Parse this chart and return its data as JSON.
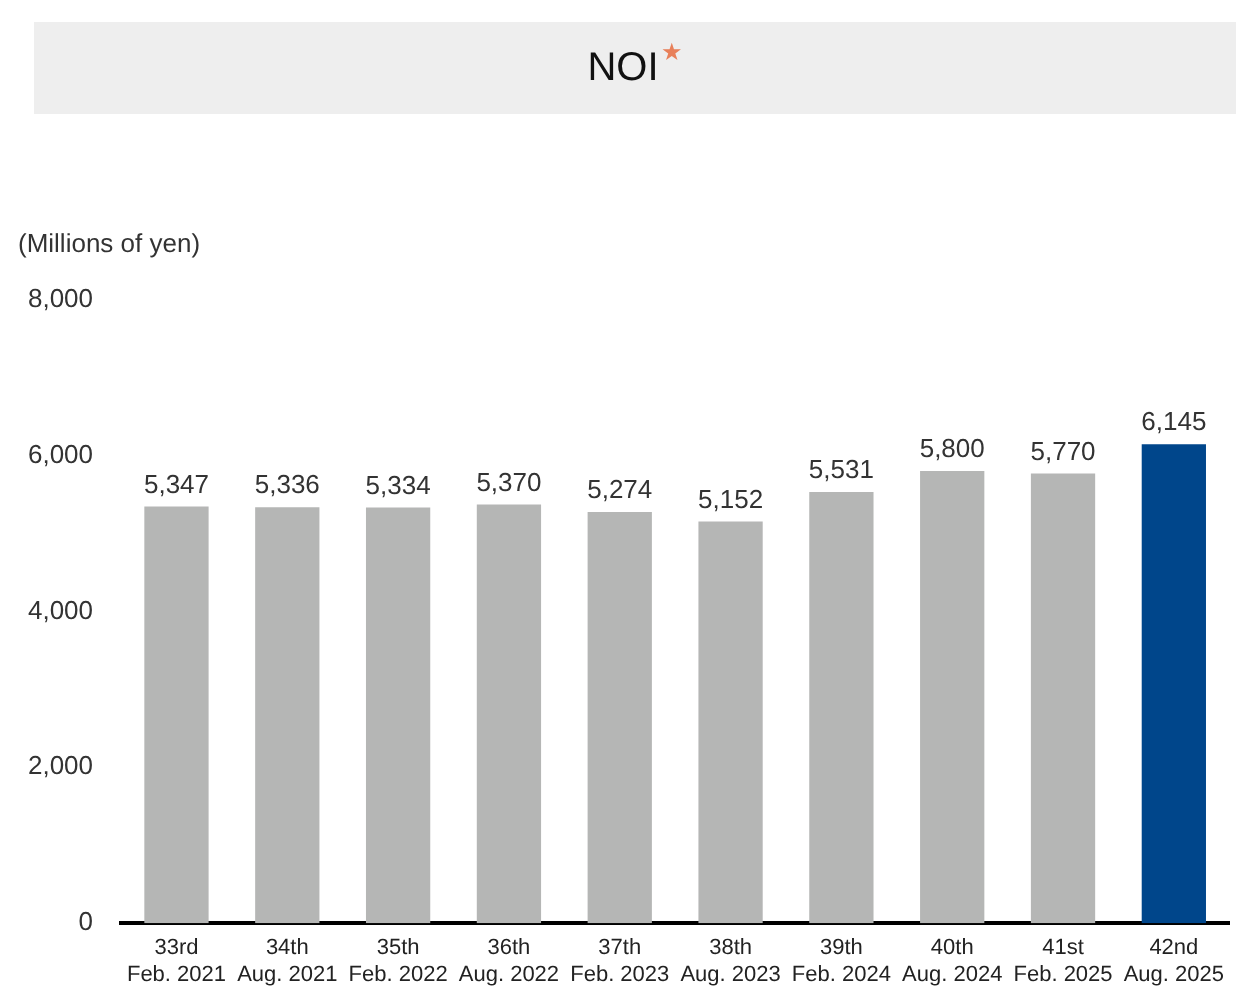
{
  "chart_data": {
    "type": "bar",
    "title": "NOI",
    "annotations": [
      "★"
    ],
    "ylabel": "(Millions of yen)",
    "categories": [
      "33rd\nFeb. 2021",
      "34th\nAug. 2021",
      "35th\nFeb. 2022",
      "36th\nAug. 2022",
      "37th\nFeb. 2023",
      "38th\nAug. 2023",
      "39th\nFeb. 2024",
      "40th\nAug. 2024",
      "41st\nFeb. 2025",
      "42nd\nAug. 2025"
    ],
    "values": [
      5347,
      5336,
      5334,
      5370,
      5274,
      5152,
      5531,
      5800,
      5770,
      6145
    ],
    "value_labels": [
      "5,347",
      "5,336",
      "5,334",
      "5,370",
      "5,274",
      "5,152",
      "5,531",
      "5,800",
      "5,770",
      "6,145"
    ],
    "colors": [
      "#b5b6b5",
      "#b5b6b5",
      "#b5b6b5",
      "#b5b6b5",
      "#b5b6b5",
      "#b5b6b5",
      "#b5b6b5",
      "#b5b6b5",
      "#b5b6b5",
      "#00468b"
    ],
    "ylim": [
      0,
      8000
    ],
    "yticks": [
      0,
      {
        "value": 2000,
        "label": "2,000"
      },
      {
        "value": 4000,
        "label": "4,000"
      },
      {
        "value": 6000,
        "label": "6,000"
      },
      {
        "value": 8000,
        "label": "8,000"
      }
    ],
    "grid": false,
    "legend": false
  }
}
